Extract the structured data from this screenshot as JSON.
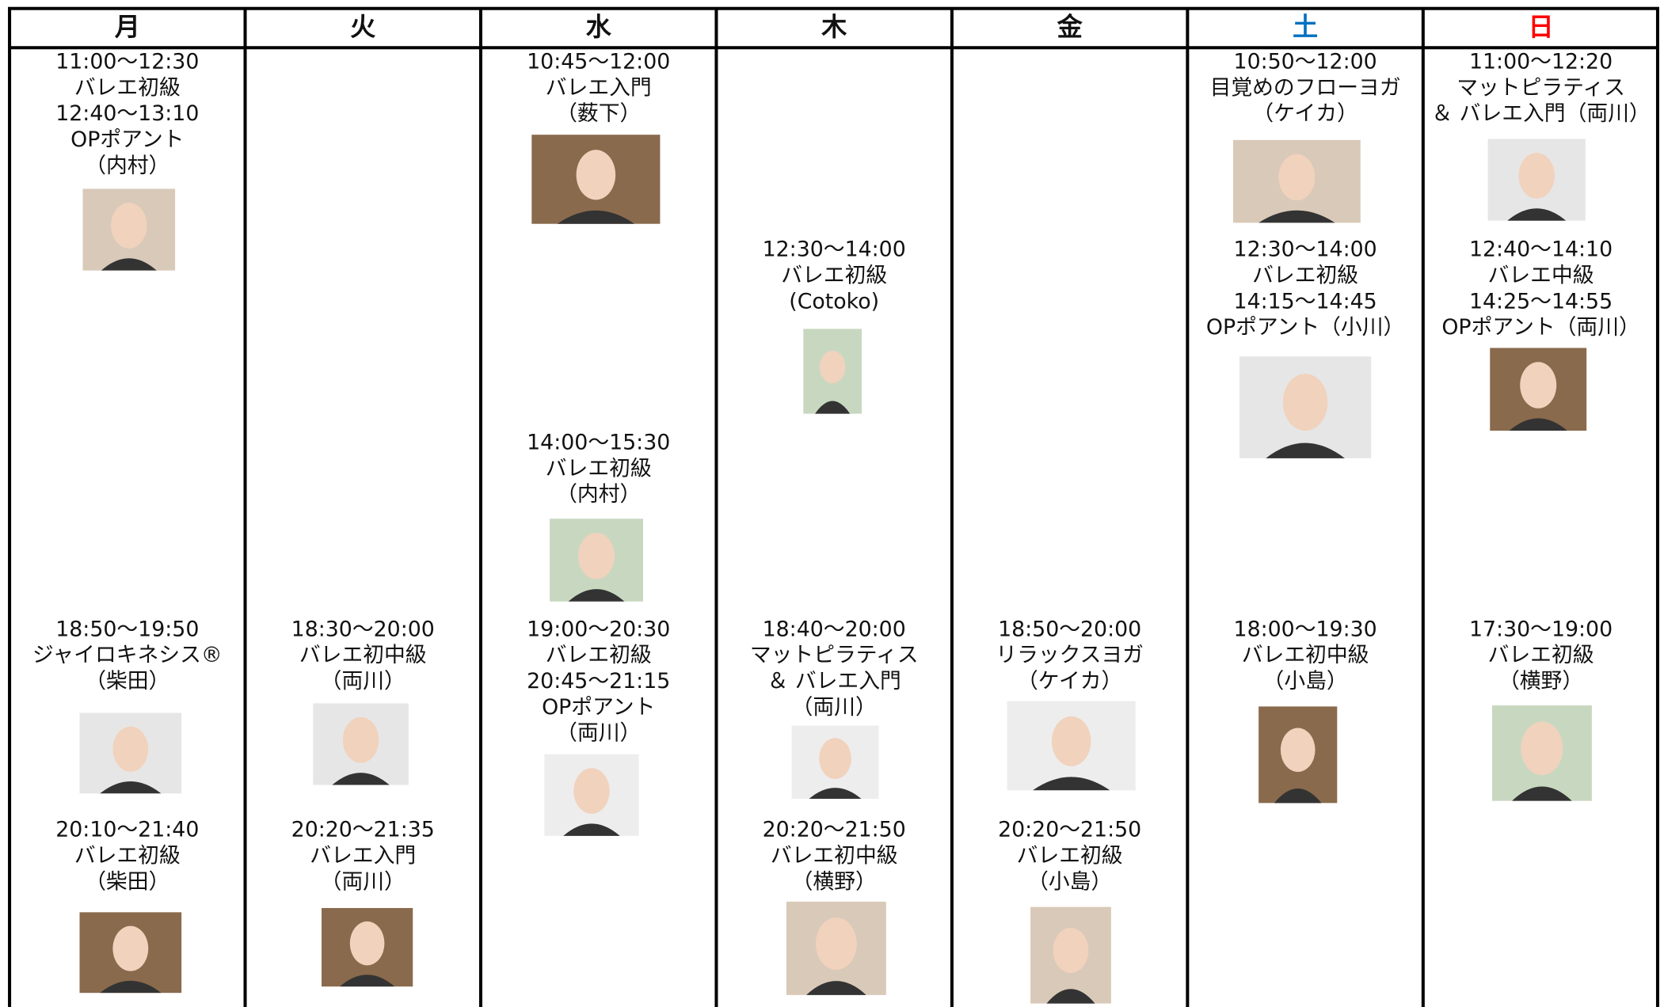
{
  "header": {
    "days": [
      "月",
      "火",
      "水",
      "木",
      "金",
      "土",
      "日"
    ]
  },
  "columns": [
    {
      "classes": [
        {
          "lines": [
            "11:00〜12:30",
            "バレエ初級",
            "12:40〜13:10",
            "OPポアント",
            "（内村）"
          ]
        },
        {
          "lines": [
            "18:50〜19:50",
            "ジャイロキネシス®",
            "（柴田）"
          ]
        },
        {
          "lines": [
            "20:10〜21:40",
            "バレエ初級",
            "（柴田）"
          ]
        }
      ]
    },
    {
      "classes": [
        {
          "lines": [
            "18:30〜20:00",
            "バレエ初中級",
            "（両川）"
          ]
        },
        {
          "lines": [
            "20:20〜21:35",
            "バレエ入門",
            "（両川）"
          ]
        }
      ]
    },
    {
      "classes": [
        {
          "lines": [
            "10:45〜12:00",
            "バレエ入門",
            "（薮下）"
          ]
        },
        {
          "lines": [
            "14:00〜15:30",
            "バレエ初級",
            "（内村）"
          ]
        },
        {
          "lines": [
            "19:00〜20:30",
            "バレエ初級",
            "20:45〜21:15",
            "OPポアント",
            "（両川）"
          ]
        }
      ]
    },
    {
      "classes": [
        {
          "lines": [
            "12:30〜14:00",
            "バレエ初級",
            "(Cotoko)"
          ]
        },
        {
          "lines": [
            "18:40〜20:00",
            "マットピラティス",
            "＆ バレエ入門",
            "（両川）"
          ]
        },
        {
          "lines": [
            "20:20〜21:50",
            "バレエ初中級",
            "（横野）"
          ]
        }
      ]
    },
    {
      "classes": [
        {
          "lines": [
            "18:50〜20:00",
            "リラックスヨガ",
            "（ケイカ）"
          ]
        },
        {
          "lines": [
            "20:20〜21:50",
            "バレエ初級",
            "（小島）"
          ]
        }
      ]
    },
    {
      "classes": [
        {
          "lines": [
            "10:50〜12:00",
            "目覚めのフローヨガ",
            "（ケイカ）"
          ]
        },
        {
          "lines": [
            "12:30〜14:00",
            "バレエ初級",
            "14:15〜14:45",
            "OPポアント（小川）"
          ]
        },
        {
          "lines": [
            "18:00〜19:30",
            "バレエ初中級",
            "（小島）"
          ]
        }
      ]
    },
    {
      "classes": [
        {
          "lines": [
            "11:00〜12:20",
            "マットピラティス",
            "＆ バレエ入門（両川）"
          ]
        },
        {
          "lines": [
            "12:40〜14:10",
            "バレエ中級",
            "14:25〜14:55",
            "OPポアント（両川）"
          ]
        },
        {
          "lines": [
            "17:30〜19:00",
            "バレエ初級",
            "（横野）"
          ]
        }
      ]
    }
  ]
}
